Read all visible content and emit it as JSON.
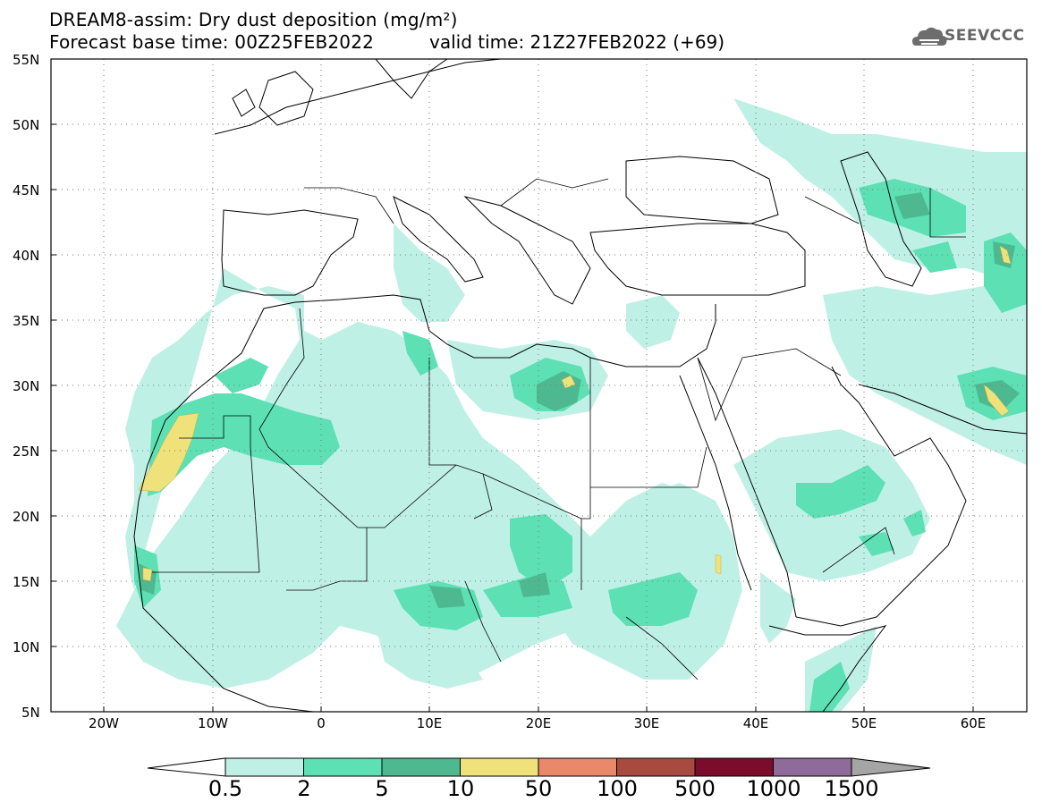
{
  "title": {
    "line1": "DREAM8-assim: Dry dust deposition (mg/m²)",
    "line2": "Forecast base time: 00Z25FEB2022",
    "valid": "valid time: 21Z27FEB2022 (+69)"
  },
  "logo": {
    "text": "SEEVCCC",
    "icon": "cloud-icon"
  },
  "axes": {
    "lat_labels": [
      "55N",
      "50N",
      "45N",
      "40N",
      "35N",
      "30N",
      "25N",
      "20N",
      "15N",
      "10N",
      "5N"
    ],
    "lon_labels": [
      "20W",
      "10W",
      "0",
      "10E",
      "20E",
      "30E",
      "40E",
      "50E",
      "60E"
    ]
  },
  "legend": {
    "thresholds": [
      "0.5",
      "2",
      "5",
      "10",
      "50",
      "100",
      "500",
      "1000",
      "1500"
    ],
    "colors": [
      "#bff0e6",
      "#5de0b4",
      "#4eb991",
      "#f0e27a",
      "#e9896a",
      "#a84a3f",
      "#7c0c2b",
      "#8e6b9a",
      "#a5a5a5"
    ]
  },
  "colors": {
    "land_outline": "#000000",
    "level1": "#bff0e6",
    "level2": "#5de0b4",
    "level3": "#4eb991",
    "level4": "#f0e27a"
  }
}
